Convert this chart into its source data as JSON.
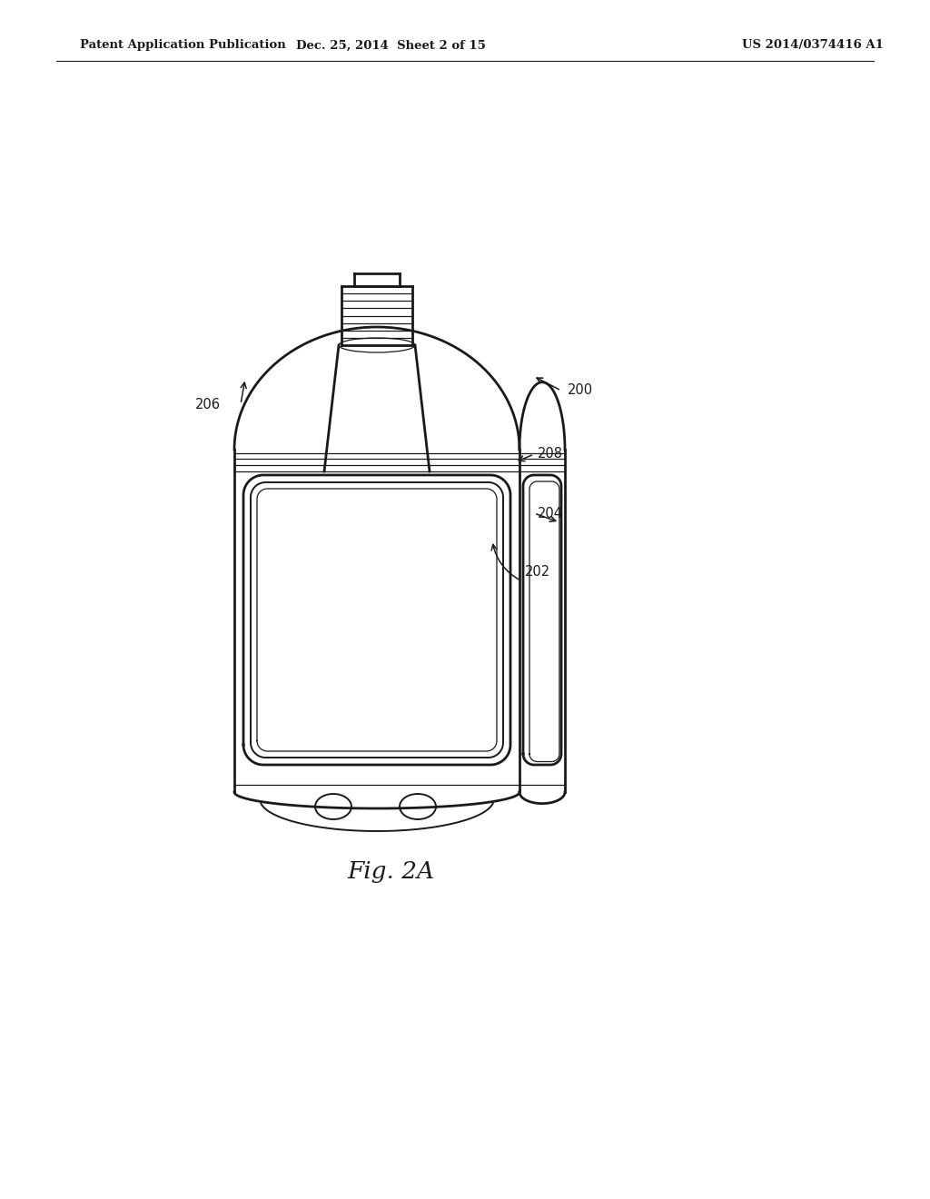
{
  "background_color": "#ffffff",
  "line_color": "#1a1a1a",
  "header_left": "Patent Application Publication",
  "header_center": "Dec. 25, 2014  Sheet 2 of 15",
  "header_right": "US 2014/0374416 A1",
  "fig_label": "Fig. 2A",
  "label_fontsize": 10.5,
  "header_fontsize": 9.5,
  "fig_label_fontsize": 19
}
